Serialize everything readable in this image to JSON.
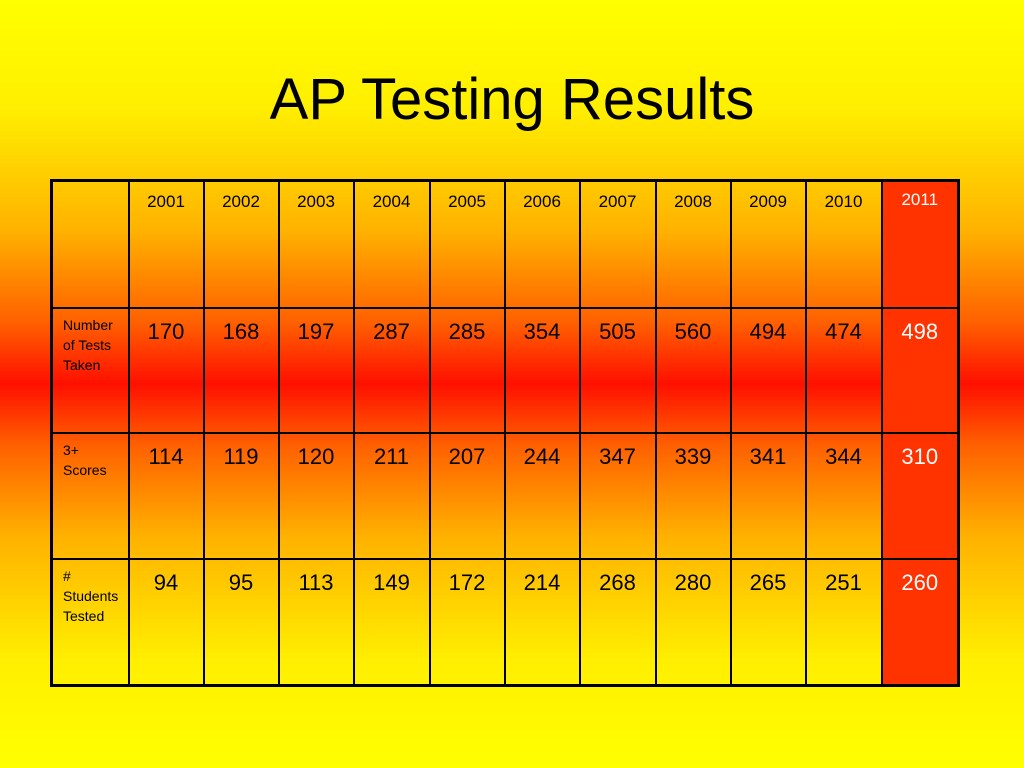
{
  "title": "AP Testing Results",
  "table": {
    "years": [
      "2001",
      "2002",
      "2003",
      "2004",
      "2005",
      "2006",
      "2007",
      "2008",
      "2009",
      "2010",
      "2011"
    ],
    "rows": [
      {
        "label": "Number of Tests Taken",
        "values": [
          "170",
          "168",
          "197",
          "287",
          "285",
          "354",
          "505",
          "560",
          "494",
          "474",
          "498"
        ]
      },
      {
        "label": "3+ Scores",
        "values": [
          "114",
          "119",
          "120",
          "211",
          "207",
          "244",
          "347",
          "339",
          "341",
          "344",
          "310"
        ]
      },
      {
        "label": "# Students Tested",
        "values": [
          "94",
          "95",
          "113",
          "149",
          "172",
          "214",
          "268",
          "280",
          "265",
          "251",
          "260"
        ]
      }
    ],
    "highlight_color": "#ff3300",
    "highlight_text_color": "#ffffff"
  }
}
